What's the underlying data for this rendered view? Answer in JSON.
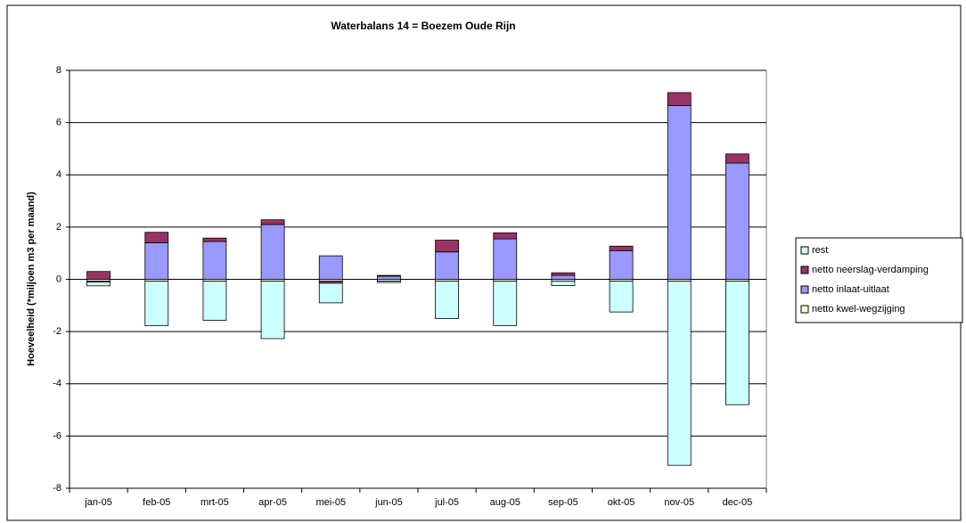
{
  "chart_data": {
    "type": "bar",
    "stacked": true,
    "title": "Waterbalans 14 = Boezem Oude Rijn",
    "y_label": "Hoeveelheid (*miljoen m3 per maand)",
    "categories": [
      "jan-05",
      "feb-05",
      "mrt-05",
      "apr-05",
      "mei-05",
      "jun-05",
      "jul-05",
      "aug-05",
      "sep-05",
      "okt-05",
      "nov-05",
      "dec-05"
    ],
    "series": [
      {
        "name": "rest",
        "color": "#ccffff",
        "values": [
          -0.15,
          -1.7,
          -1.5,
          -2.2,
          -0.75,
          -0.05,
          -1.43,
          -1.7,
          -0.17,
          -1.18,
          -7.05,
          -4.73
        ]
      },
      {
        "name": "netto neerslag-verdamping",
        "color": "#993366",
        "values": [
          0.3,
          0.4,
          0.13,
          0.18,
          -0.08,
          0.03,
          0.45,
          0.23,
          0.1,
          0.17,
          0.5,
          0.35
        ]
      },
      {
        "name": "netto inlaat-uitlaat",
        "color": "#9999ff",
        "values": [
          -0.03,
          1.4,
          1.45,
          2.1,
          0.9,
          0.12,
          1.05,
          1.55,
          0.15,
          1.1,
          6.65,
          4.45
        ]
      },
      {
        "name": "netto kwel-wegzijging",
        "color": "#ffffcc",
        "values": [
          -0.07,
          -0.07,
          -0.07,
          -0.07,
          -0.07,
          -0.07,
          -0.07,
          -0.07,
          -0.07,
          -0.07,
          -0.07,
          -0.07
        ]
      }
    ],
    "ylim": [
      -8,
      8
    ],
    "yticks": [
      -8,
      -6,
      -4,
      -2,
      0,
      2,
      4,
      6,
      8
    ],
    "grid": true,
    "legend": "right"
  }
}
